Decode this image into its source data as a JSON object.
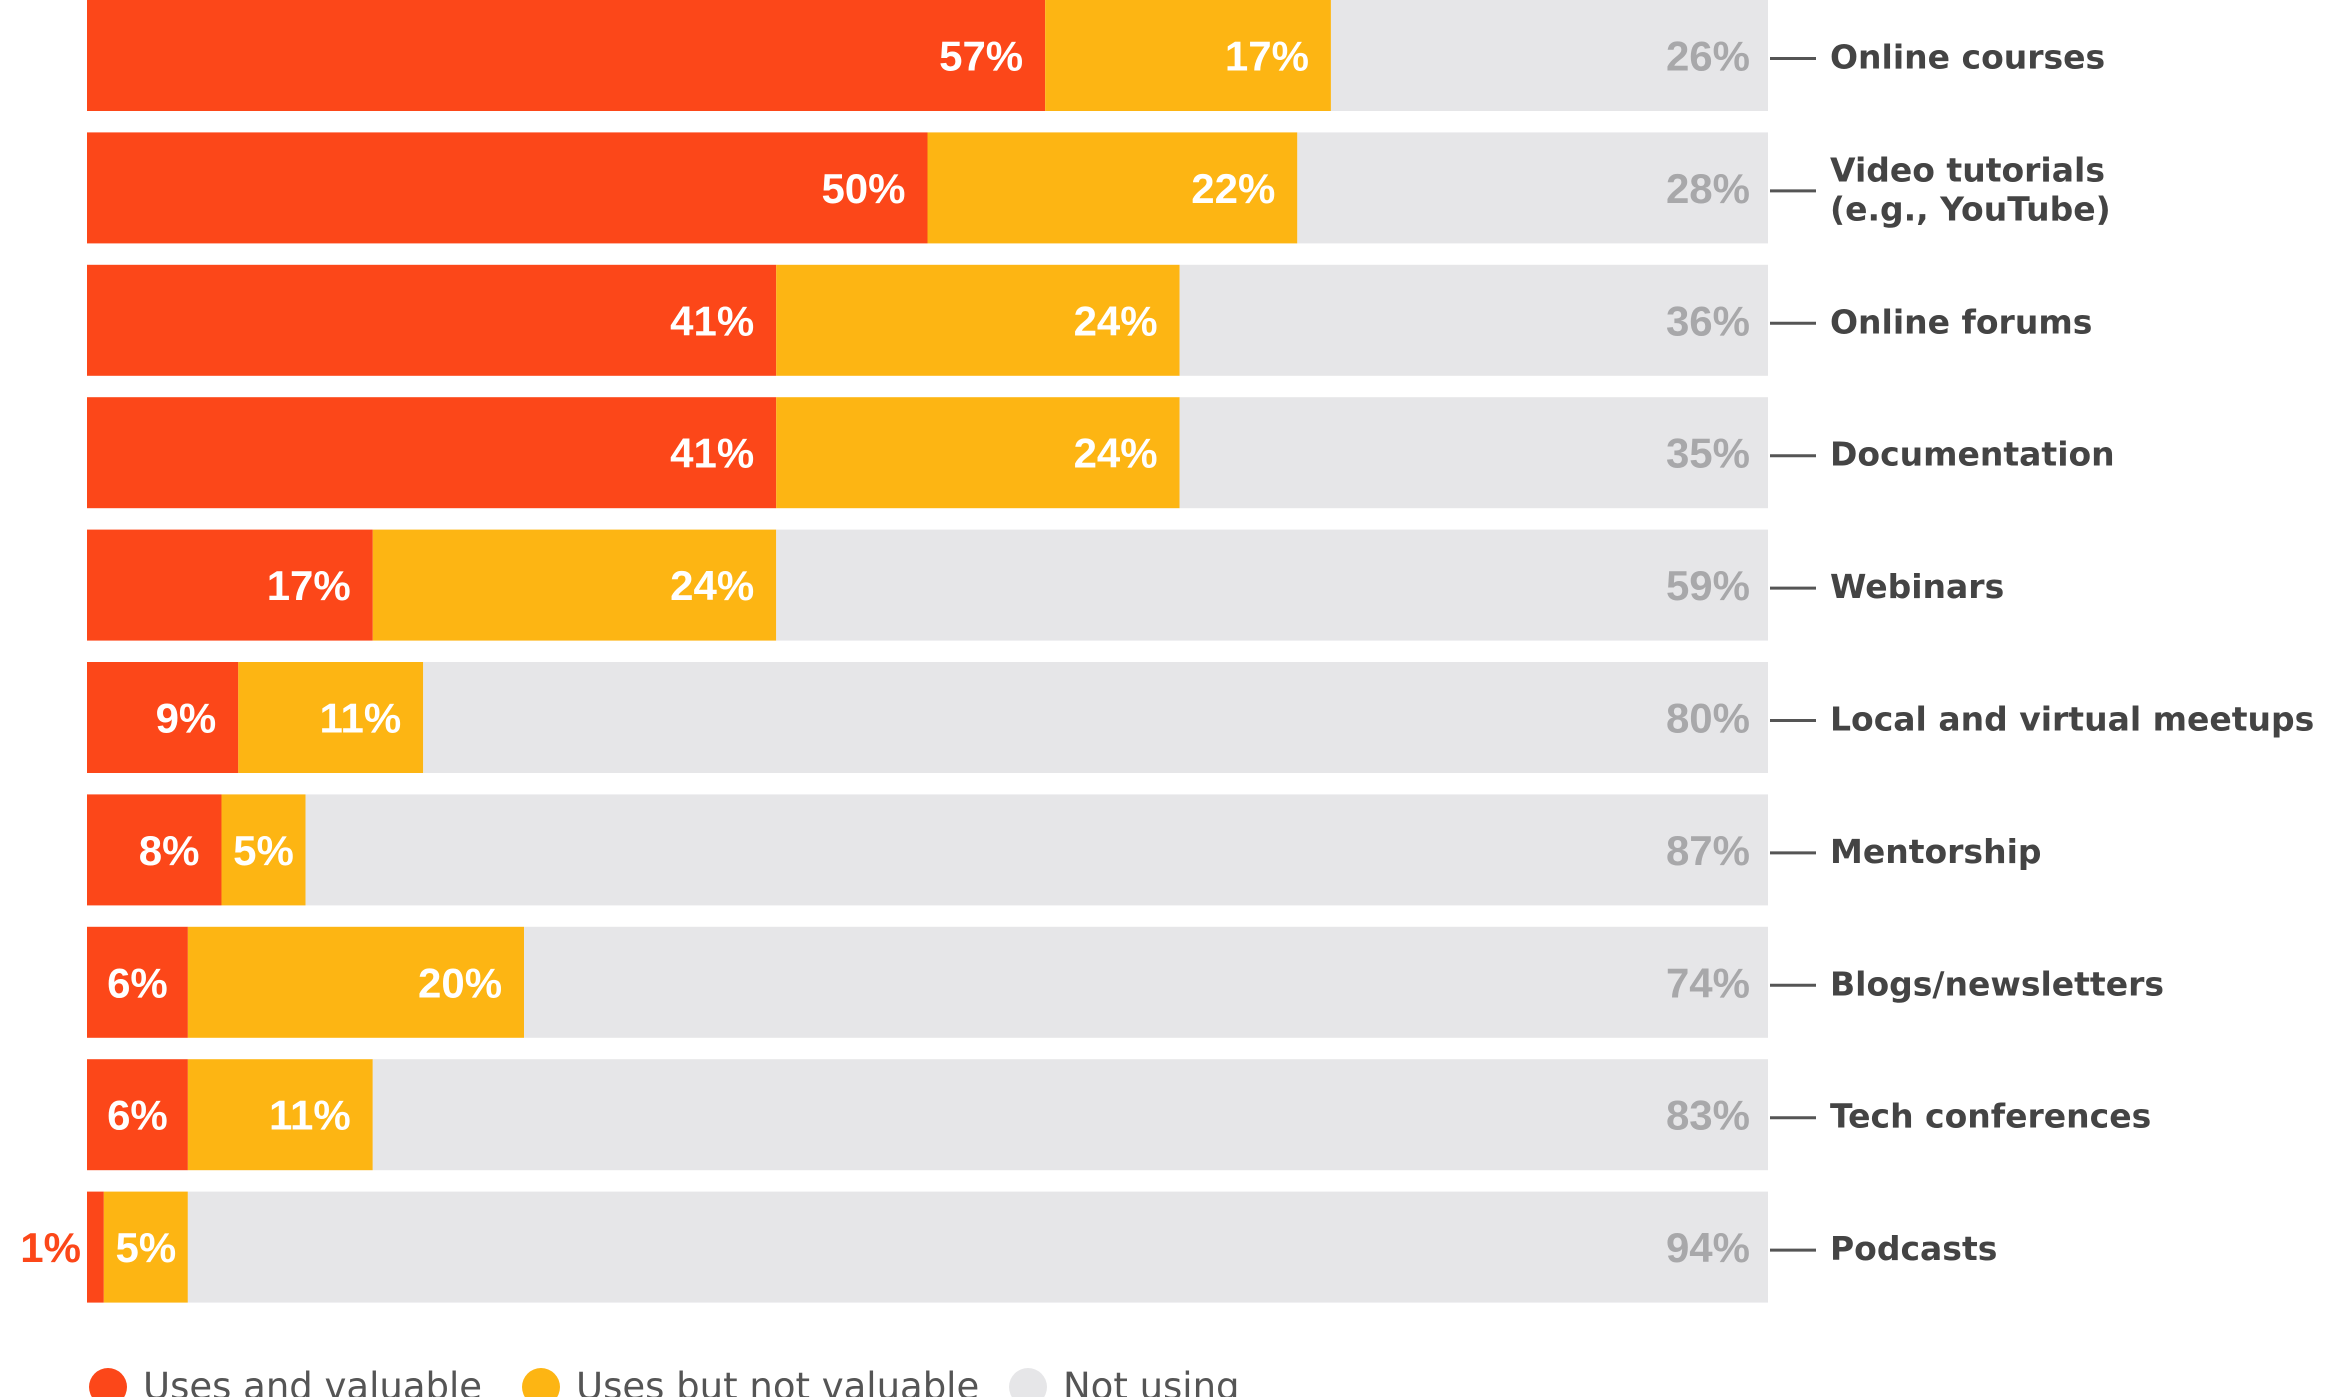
{
  "chart_data": {
    "type": "bar",
    "orientation": "horizontal",
    "stacked": true,
    "categories": [
      [
        "Online courses"
      ],
      [
        "Video tutorials",
        "(e.g., YouTube)"
      ],
      [
        "Online forums"
      ],
      [
        "Documentation"
      ],
      [
        "Webinars"
      ],
      [
        "Local and virtual meetups"
      ],
      [
        "Mentorship"
      ],
      [
        "Blogs/newsletters"
      ],
      [
        "Tech conferences"
      ],
      [
        "Podcasts"
      ]
    ],
    "series": [
      {
        "name": "Uses and valuable",
        "color": "#fc4719",
        "values": [
          57,
          50,
          41,
          41,
          17,
          9,
          8,
          6,
          6,
          1
        ],
        "labels": [
          "57%",
          "50%",
          "41%",
          "41%",
          "17%",
          "9%",
          "8%",
          "6%",
          "6%",
          "1%"
        ]
      },
      {
        "name": "Uses but not valuable",
        "color": "#fdb513",
        "values": [
          17,
          22,
          24,
          24,
          24,
          11,
          5,
          20,
          11,
          5
        ],
        "labels": [
          "17%",
          "22%",
          "24%",
          "24%",
          "24%",
          "11%",
          "5%",
          "20%",
          "11%",
          "5%"
        ]
      },
      {
        "name": "Not using",
        "color": "#e6e6e8",
        "values": [
          26,
          28,
          36,
          35,
          59,
          80,
          87,
          74,
          83,
          94
        ],
        "labels": [
          "26%",
          "28%",
          "36%",
          "35%",
          "59%",
          "80%",
          "87%",
          "74%",
          "83%",
          "94%"
        ]
      }
    ],
    "xlim": [
      0,
      100
    ],
    "grid": false,
    "legend_position": "bottom",
    "label_colors": {
      "inside": "#ffffff",
      "not_using": "#a8a8aa",
      "leader_line": "#555555"
    }
  }
}
